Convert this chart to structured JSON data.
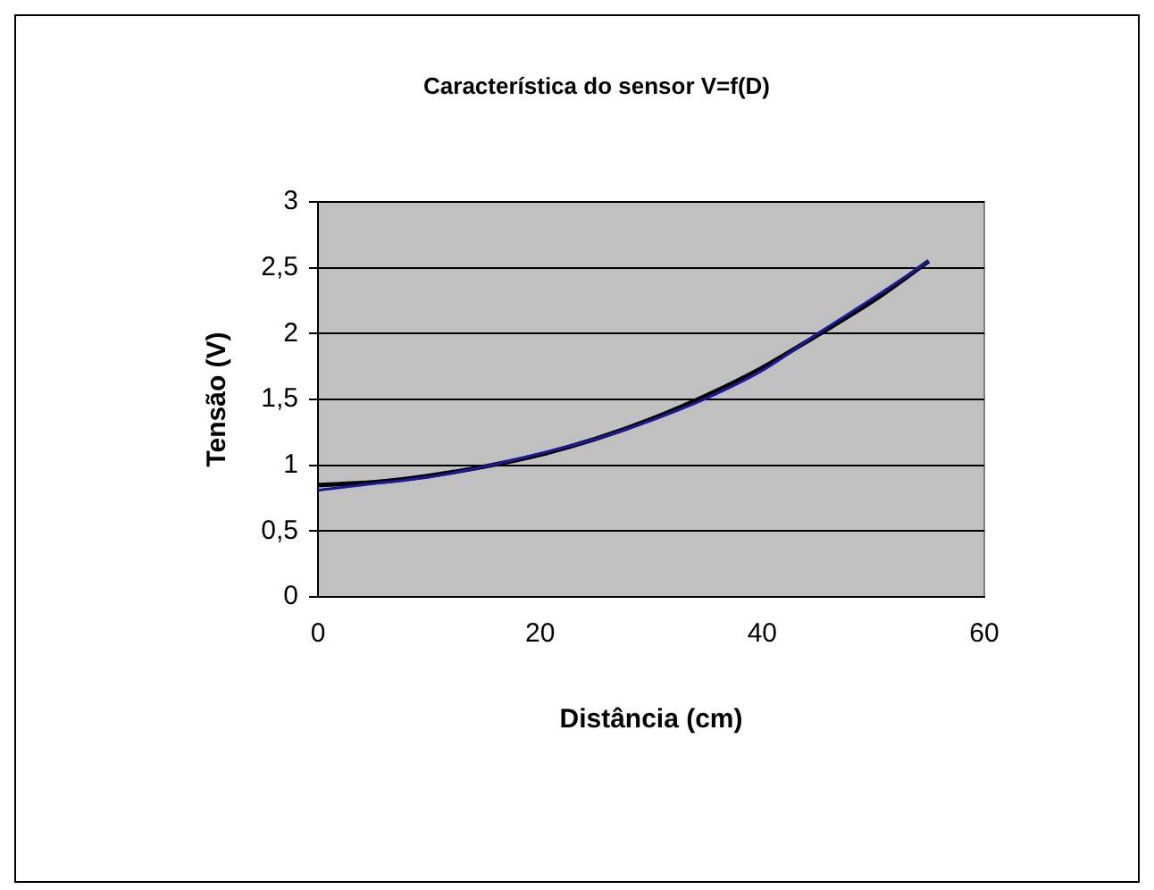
{
  "chart_data": {
    "type": "line",
    "title": "Característica do sensor V=f(D)",
    "xlabel": "Distância (cm)",
    "ylabel": "Tensão (V)",
    "xlim": [
      0,
      60
    ],
    "xticks": [
      0,
      20,
      40,
      60
    ],
    "ylim": [
      0,
      3
    ],
    "yticks": [
      0,
      {
        "value": 0.5,
        "label": "0,5"
      },
      1,
      {
        "value": 1.5,
        "label": "1,5"
      },
      2,
      {
        "value": 2.5,
        "label": "2,5"
      },
      3
    ],
    "grid": "y",
    "legend": false,
    "marker": "none",
    "series": [
      {
        "color": "#1a1a9a",
        "x": [
          0,
          5,
          10,
          15,
          20,
          25,
          30,
          35,
          40,
          45,
          50,
          55
        ],
        "values": [
          0.81,
          0.86,
          0.91,
          0.99,
          1.09,
          1.2,
          1.34,
          1.51,
          1.72,
          2.0,
          2.27,
          2.55
        ]
      },
      {
        "type": "line",
        "color": "#000000",
        "x": [
          0,
          5,
          10,
          15,
          20,
          25,
          30,
          35,
          40,
          45,
          50,
          55
        ],
        "values": [
          0.85,
          0.87,
          0.92,
          0.99,
          1.08,
          1.2,
          1.35,
          1.53,
          1.74,
          1.99,
          2.25,
          2.55
        ]
      }
    ]
  }
}
